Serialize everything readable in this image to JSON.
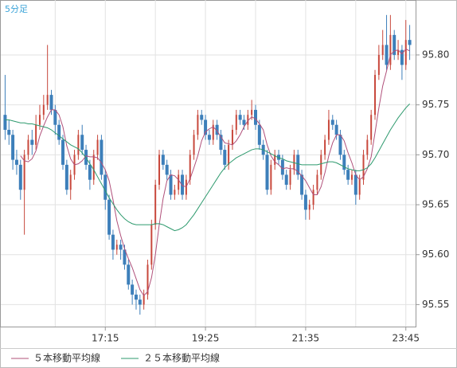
{
  "chart_data": {
    "type": "candlestick",
    "title": "5分足",
    "categories": [
      null,
      null,
      null,
      null,
      null,
      null,
      null,
      null,
      null,
      null,
      null,
      null,
      null,
      null,
      null,
      null,
      null,
      null,
      null,
      null,
      null,
      null,
      null,
      null,
      null,
      null,
      "17:15",
      null,
      null,
      null,
      null,
      null,
      null,
      null,
      null,
      null,
      null,
      null,
      null,
      null,
      null,
      null,
      null,
      null,
      null,
      null,
      null,
      null,
      null,
      null,
      null,
      null,
      "19:25",
      null,
      null,
      null,
      null,
      null,
      null,
      null,
      null,
      null,
      null,
      null,
      null,
      null,
      null,
      null,
      null,
      null,
      null,
      null,
      null,
      null,
      null,
      null,
      null,
      null,
      "21:35",
      null,
      null,
      null,
      null,
      null,
      null,
      null,
      null,
      null,
      null,
      null,
      null,
      null,
      null,
      null,
      null,
      null,
      null,
      null,
      null,
      null,
      null,
      null,
      null,
      null,
      "23:45",
      null
    ],
    "open": [
      95.74,
      95.725,
      95.72,
      95.695,
      95.69,
      95.665,
      95.7,
      95.715,
      95.71,
      95.73,
      95.74,
      95.75,
      95.76,
      95.745,
      95.73,
      95.715,
      95.69,
      95.665,
      95.68,
      95.7,
      95.72,
      95.705,
      95.69,
      95.675,
      95.7,
      95.715,
      95.68,
      95.655,
      95.62,
      95.605,
      95.61,
      95.605,
      95.59,
      95.57,
      95.56,
      95.555,
      95.55,
      95.56,
      95.59,
      95.63,
      95.67,
      95.7,
      95.69,
      95.68,
      95.66,
      95.665,
      95.68,
      95.66,
      95.675,
      95.7,
      95.72,
      95.74,
      95.735,
      95.72,
      95.715,
      95.73,
      95.72,
      95.705,
      95.69,
      95.71,
      95.725,
      95.74,
      95.735,
      95.73,
      95.74,
      95.745,
      95.73,
      95.71,
      95.7,
      95.665,
      95.69,
      95.7,
      95.695,
      95.68,
      95.67,
      95.685,
      95.7,
      95.68,
      95.66,
      95.645,
      95.65,
      95.665,
      95.68,
      95.7,
      95.715,
      95.735,
      95.73,
      95.72,
      95.7,
      95.685,
      95.675,
      95.68,
      95.66,
      95.675,
      95.7,
      95.715,
      95.74,
      95.78,
      95.8,
      95.81,
      95.79,
      95.82,
      95.8,
      95.805,
      95.79,
      95.815
    ],
    "high": [
      95.78,
      95.735,
      95.725,
      95.705,
      95.695,
      95.705,
      95.72,
      95.725,
      95.74,
      95.75,
      95.76,
      95.81,
      95.765,
      95.75,
      95.735,
      95.72,
      95.695,
      95.685,
      95.705,
      95.725,
      95.73,
      95.71,
      95.695,
      95.705,
      95.72,
      95.72,
      95.685,
      95.66,
      95.625,
      95.615,
      95.615,
      95.61,
      95.595,
      95.575,
      95.565,
      95.56,
      95.565,
      95.595,
      95.635,
      95.675,
      95.705,
      95.705,
      95.695,
      95.685,
      95.67,
      95.685,
      95.685,
      95.68,
      95.705,
      95.725,
      95.745,
      95.745,
      95.74,
      95.725,
      95.735,
      95.735,
      95.725,
      95.71,
      95.715,
      95.73,
      95.745,
      95.745,
      95.74,
      95.745,
      95.755,
      95.75,
      95.735,
      95.715,
      95.705,
      95.695,
      95.705,
      95.705,
      95.7,
      95.685,
      95.69,
      95.705,
      95.705,
      95.685,
      95.665,
      95.655,
      95.67,
      95.685,
      95.705,
      95.72,
      95.745,
      95.74,
      95.735,
      95.725,
      95.705,
      95.69,
      95.685,
      95.685,
      95.68,
      95.705,
      95.72,
      95.745,
      95.785,
      95.81,
      95.825,
      95.84,
      95.84,
      95.825,
      95.815,
      95.81,
      95.835,
      95.83
    ],
    "low": [
      95.715,
      95.71,
      95.685,
      95.68,
      95.655,
      95.62,
      95.695,
      95.7,
      95.705,
      95.725,
      95.735,
      95.745,
      95.74,
      95.72,
      95.71,
      95.685,
      95.66,
      95.655,
      95.675,
      95.695,
      95.7,
      95.685,
      95.665,
      95.67,
      95.695,
      95.675,
      95.645,
      95.615,
      95.595,
      95.6,
      95.595,
      95.585,
      95.565,
      95.55,
      95.545,
      95.54,
      95.545,
      95.555,
      95.585,
      95.625,
      95.665,
      95.685,
      95.675,
      95.655,
      95.655,
      95.66,
      95.655,
      95.655,
      95.67,
      95.695,
      95.715,
      95.73,
      95.715,
      95.71,
      95.71,
      95.715,
      95.7,
      95.685,
      95.685,
      95.705,
      95.72,
      95.73,
      95.725,
      95.725,
      95.735,
      95.725,
      95.705,
      95.695,
      95.66,
      95.66,
      95.685,
      95.69,
      95.675,
      95.665,
      95.665,
      95.68,
      95.675,
      95.655,
      95.635,
      95.635,
      95.645,
      95.66,
      95.675,
      95.695,
      95.71,
      95.725,
      95.715,
      95.695,
      95.68,
      95.67,
      95.67,
      95.65,
      95.655,
      95.67,
      95.695,
      95.71,
      95.735,
      95.775,
      95.795,
      95.785,
      95.785,
      95.795,
      95.795,
      95.775,
      95.785,
      95.795
    ],
    "close": [
      95.725,
      95.72,
      95.695,
      95.69,
      95.665,
      95.7,
      95.715,
      95.71,
      95.73,
      95.74,
      95.75,
      95.76,
      95.745,
      95.73,
      95.715,
      95.69,
      95.665,
      95.68,
      95.7,
      95.72,
      95.705,
      95.69,
      95.675,
      95.7,
      95.715,
      95.68,
      95.655,
      95.62,
      95.605,
      95.61,
      95.605,
      95.59,
      95.57,
      95.56,
      95.555,
      95.55,
      95.56,
      95.59,
      95.63,
      95.67,
      95.7,
      95.69,
      95.68,
      95.66,
      95.665,
      95.68,
      95.66,
      95.675,
      95.7,
      95.72,
      95.74,
      95.735,
      95.72,
      95.715,
      95.73,
      95.72,
      95.705,
      95.69,
      95.71,
      95.725,
      95.74,
      95.735,
      95.73,
      95.74,
      95.745,
      95.73,
      95.71,
      95.7,
      95.665,
      95.69,
      95.7,
      95.695,
      95.68,
      95.67,
      95.685,
      95.7,
      95.68,
      95.66,
      95.645,
      95.65,
      95.665,
      95.68,
      95.7,
      95.715,
      95.735,
      95.73,
      95.72,
      95.7,
      95.685,
      95.675,
      95.68,
      95.66,
      95.675,
      95.7,
      95.715,
      95.74,
      95.78,
      95.8,
      95.81,
      95.79,
      95.82,
      95.8,
      95.805,
      95.79,
      95.815,
      95.81
    ],
    "up_color": "#c8483c",
    "down_color": "#3d7fba",
    "series": [
      {
        "name": "５本移動平均線",
        "color": "#b0507a",
        "values": [
          null,
          null,
          null,
          null,
          95.699,
          95.694,
          95.693,
          95.696,
          95.704,
          95.719,
          95.729,
          95.738,
          95.745,
          95.745,
          95.74,
          95.728,
          95.709,
          95.696,
          95.69,
          95.691,
          95.694,
          95.699,
          95.698,
          95.698,
          95.697,
          95.692,
          95.685,
          95.674,
          95.655,
          95.634,
          95.619,
          95.606,
          95.596,
          95.587,
          95.576,
          95.565,
          95.559,
          95.563,
          95.577,
          95.6,
          95.63,
          95.656,
          95.674,
          95.68,
          95.679,
          95.675,
          95.669,
          95.668,
          95.676,
          95.687,
          95.699,
          95.714,
          95.723,
          95.726,
          95.728,
          95.724,
          95.718,
          95.712,
          95.711,
          95.71,
          95.714,
          95.72,
          95.728,
          95.734,
          95.738,
          95.736,
          95.731,
          95.725,
          95.71,
          95.699,
          95.693,
          95.69,
          95.686,
          95.687,
          95.686,
          95.686,
          95.683,
          95.679,
          95.674,
          95.667,
          95.66,
          95.66,
          95.668,
          95.682,
          95.699,
          95.712,
          95.72,
          95.72,
          95.714,
          95.702,
          95.692,
          95.68,
          95.675,
          95.678,
          95.686,
          95.698,
          95.722,
          95.747,
          95.769,
          95.784,
          95.8,
          95.804,
          95.805,
          95.801,
          95.806,
          95.804
        ]
      },
      {
        "name": "２５本移動平均線",
        "color": "#2e9a6e",
        "values": [
          95.735,
          95.735,
          95.734,
          95.733,
          95.732,
          95.732,
          95.731,
          95.731,
          95.73,
          95.729,
          95.728,
          95.727,
          95.725,
          95.722,
          95.719,
          95.716,
          95.713,
          95.71,
          95.708,
          95.706,
          95.702,
          95.697,
          95.691,
          95.685,
          95.678,
          95.671,
          95.664,
          95.657,
          95.651,
          95.645,
          95.64,
          95.636,
          95.633,
          95.631,
          95.63,
          95.63,
          95.63,
          95.63,
          95.63,
          95.631,
          95.631,
          95.63,
          95.628,
          95.626,
          95.624,
          95.625,
          95.627,
          95.63,
          95.635,
          95.64,
          95.646,
          95.652,
          95.658,
          95.664,
          95.67,
          95.676,
          95.682,
          95.687,
          95.691,
          95.694,
          95.697,
          95.699,
          95.701,
          95.703,
          95.705,
          95.706,
          95.706,
          95.705,
          95.703,
          95.701,
          95.699,
          95.697,
          95.696,
          95.694,
          95.693,
          95.692,
          95.691,
          95.69,
          95.69,
          95.69,
          95.69,
          95.69,
          95.691,
          95.692,
          95.693,
          95.693,
          95.692,
          95.69,
          95.688,
          95.686,
          95.685,
          95.684,
          95.684,
          95.685,
          95.687,
          95.691,
          95.697,
          95.704,
          95.711,
          95.718,
          95.725,
          95.731,
          95.737,
          95.742,
          95.747,
          95.751
        ]
      }
    ],
    "ylim": [
      95.528,
      95.855
    ],
    "yticks": [
      {
        "value": 95.55,
        "label": "95.55"
      },
      {
        "value": 95.6,
        "label": "95.60"
      },
      {
        "value": 95.65,
        "label": "95.65"
      },
      {
        "value": 95.7,
        "label": "95.70"
      },
      {
        "value": 95.75,
        "label": "95.75"
      },
      {
        "value": 95.8,
        "label": "95.80"
      }
    ],
    "grid": true
  }
}
